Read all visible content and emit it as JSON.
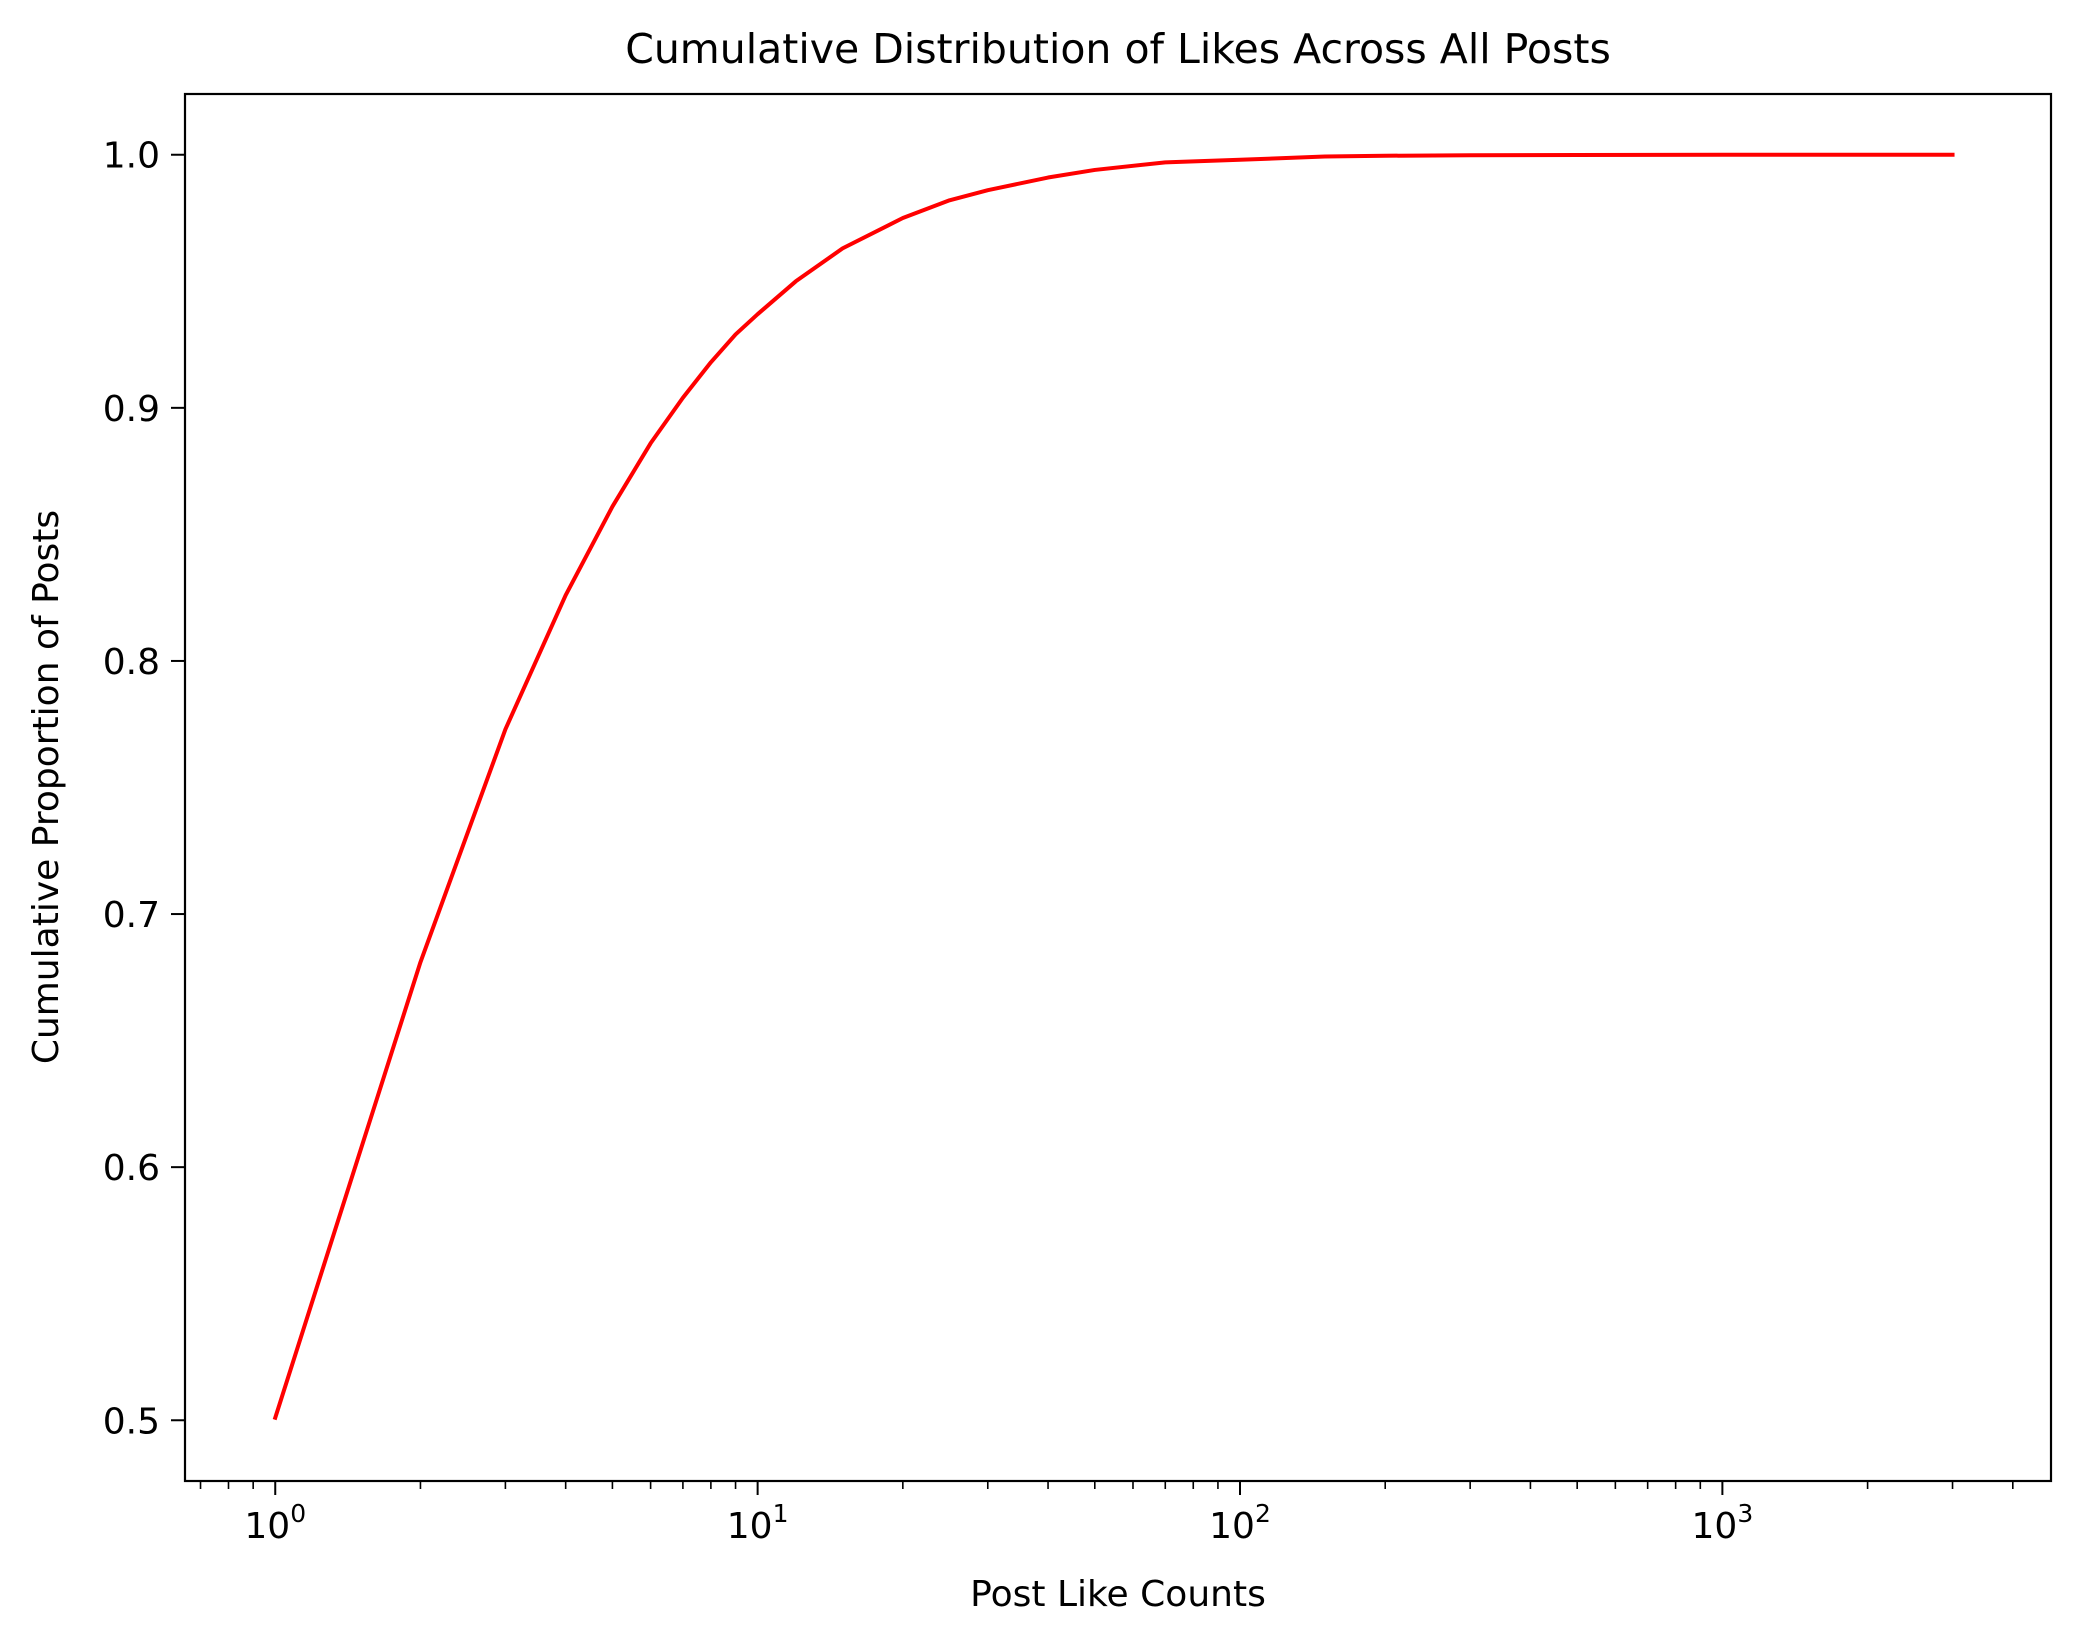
{
  "chart_data": {
    "type": "line",
    "title": "Cumulative Distribution of Likes Across All Posts",
    "xlabel": "Post Like Counts",
    "ylabel": "Cumulative Proportion of Posts",
    "x_scale": "log",
    "xlim": [
      0.65,
      4800
    ],
    "ylim": [
      0.476,
      1.024
    ],
    "x_major_ticks": [
      {
        "value": 1,
        "base": "10",
        "exp": "0"
      },
      {
        "value": 10,
        "base": "10",
        "exp": "1"
      },
      {
        "value": 100,
        "base": "10",
        "exp": "2"
      },
      {
        "value": 1000,
        "base": "10",
        "exp": "3"
      }
    ],
    "x_minor_ticks": [
      0.7,
      0.8,
      0.9,
      2,
      3,
      4,
      5,
      6,
      7,
      8,
      9,
      20,
      30,
      40,
      50,
      60,
      70,
      80,
      90,
      200,
      300,
      400,
      500,
      600,
      700,
      800,
      900,
      2000,
      3000,
      4000
    ],
    "y_ticks": [
      {
        "value": 0.5,
        "label": "0.5"
      },
      {
        "value": 0.6,
        "label": "0.6"
      },
      {
        "value": 0.7,
        "label": "0.7"
      },
      {
        "value": 0.8,
        "label": "0.8"
      },
      {
        "value": 0.9,
        "label": "0.9"
      },
      {
        "value": 1.0,
        "label": "1.0"
      }
    ],
    "grid": false,
    "legend": "none",
    "series": [
      {
        "color": "#ff0000",
        "x": [
          1,
          2,
          3,
          4,
          5,
          6,
          7,
          8,
          9,
          10,
          12,
          15,
          20,
          25,
          30,
          40,
          50,
          70,
          100,
          150,
          200,
          300,
          500,
          1000,
          2000,
          3000
        ],
        "y": [
          0.501,
          0.681,
          0.773,
          0.826,
          0.861,
          0.886,
          0.904,
          0.918,
          0.929,
          0.937,
          0.95,
          0.963,
          0.975,
          0.982,
          0.986,
          0.991,
          0.994,
          0.997,
          0.998,
          0.9993,
          0.9996,
          0.9998,
          0.9999,
          1.0,
          1.0,
          1.0
        ]
      }
    ]
  }
}
